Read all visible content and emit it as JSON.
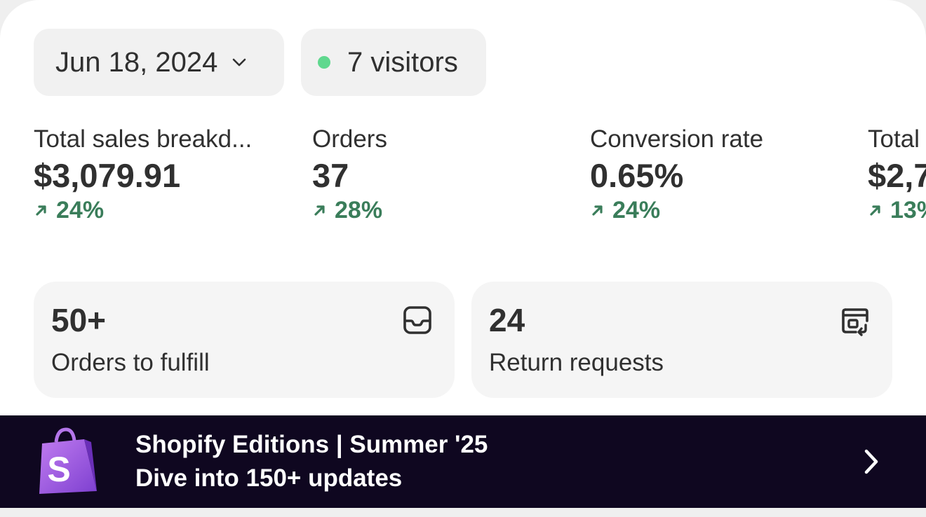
{
  "header": {
    "date_label": "Jun 18, 2024",
    "visitors_label": "7 visitors"
  },
  "metrics": [
    {
      "label": "Total sales breakd...",
      "value": "$3,079.91",
      "change": "24%"
    },
    {
      "label": "Orders",
      "value": "37",
      "change": "28%"
    },
    {
      "label": "Conversion rate",
      "value": "0.65%",
      "change": "24%"
    },
    {
      "label": "Total",
      "value": "$2,7",
      "change": "13%"
    }
  ],
  "tasks": [
    {
      "count": "50+",
      "label": "Orders to fulfill",
      "icon": "inbox-icon"
    },
    {
      "count": "24",
      "label": "Return requests",
      "icon": "return-box-icon"
    }
  ],
  "banner": {
    "title": "Shopify Editions | Summer '25",
    "subtitle": "Dive into 150+ updates",
    "logo_letter": "S"
  },
  "colors": {
    "positive": "#3a7d5a",
    "live_dot": "#5fd88e",
    "banner_bg": "#0f0720"
  }
}
